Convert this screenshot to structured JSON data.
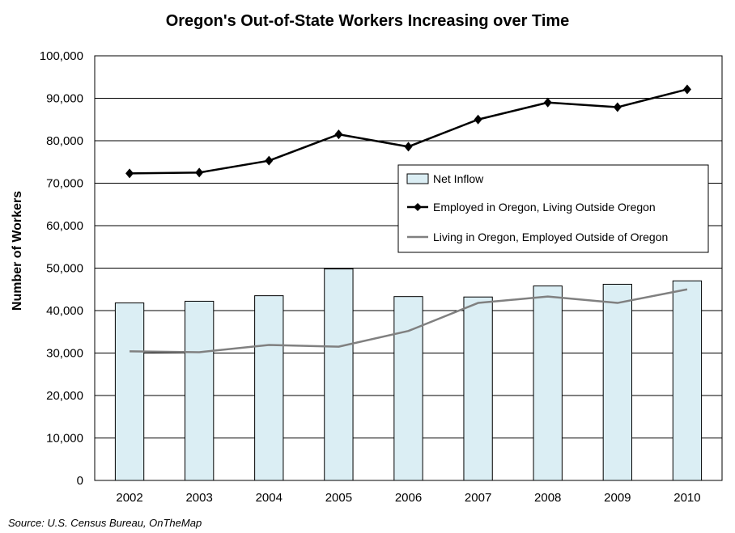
{
  "chart_data": {
    "type": "bar",
    "title": "Oregon's Out-of-State Workers Increasing over Time",
    "xlabel": "",
    "ylabel": "Number of Workers",
    "source": "Source: U.S. Census Bureau, OnTheMap",
    "categories": [
      "2002",
      "2003",
      "2004",
      "2005",
      "2006",
      "2007",
      "2008",
      "2009",
      "2010"
    ],
    "ylim": [
      0,
      100000
    ],
    "yticks": [
      "0",
      "10,000",
      "20,000",
      "30,000",
      "40,000",
      "50,000",
      "60,000",
      "70,000",
      "80,000",
      "90,000",
      "100,000"
    ],
    "grid": true,
    "legend_position": "center-right",
    "series": [
      {
        "name": "Net Inflow",
        "kind": "bar",
        "color": "#dbeef4",
        "values": [
          41800,
          42200,
          43500,
          49800,
          43300,
          43200,
          45800,
          46200,
          47000
        ]
      },
      {
        "name": "Employed in Oregon, Living Outside Oregon",
        "kind": "line",
        "marker": "diamond",
        "color": "#000000",
        "values": [
          72300,
          72500,
          75300,
          81500,
          78600,
          85000,
          89000,
          87900,
          92100
        ]
      },
      {
        "name": "Living in Oregon, Employed Outside of Oregon",
        "kind": "line",
        "color": "#808080",
        "values": [
          30400,
          30200,
          31900,
          31500,
          35200,
          41800,
          43300,
          41800,
          45000
        ]
      }
    ]
  }
}
